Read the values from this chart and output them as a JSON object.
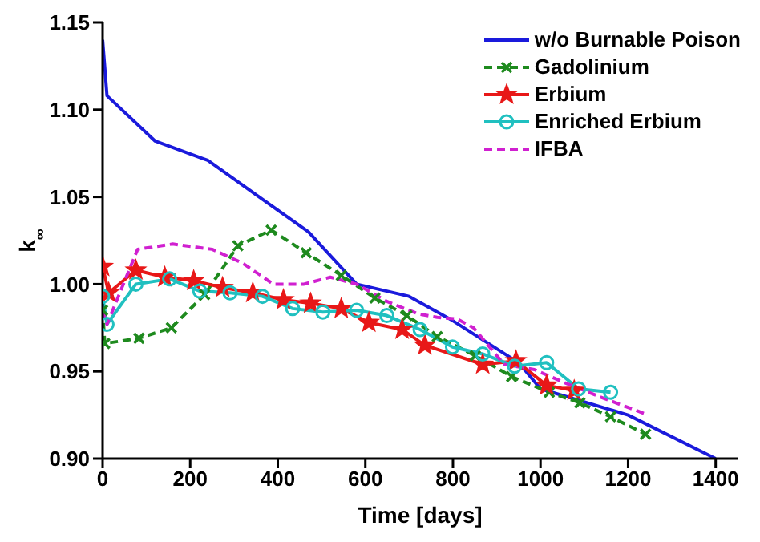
{
  "chart_data": {
    "type": "line",
    "xlabel": "Time [days]",
    "ylabel": "k$_{∞}$",
    "xlim": [
      0,
      1450
    ],
    "xticks": [
      0,
      200,
      400,
      600,
      800,
      1000,
      1200,
      1400
    ],
    "ylim": [
      0.9,
      1.15
    ],
    "yticks": [
      {
        "value": 0.9,
        "label": "0.90"
      },
      0.95,
      {
        "value": 1.0,
        "label": "1.00"
      },
      1.05,
      {
        "value": 1.1,
        "label": "1.10"
      },
      1.15
    ],
    "legend": "top right",
    "series": [
      {
        "name": "w/o Burnable Poison",
        "color": "#1a1adc",
        "marker": "none",
        "line_style": "solid",
        "x": [
          0,
          10,
          120,
          240,
          380,
          470,
          580,
          700,
          800,
          950,
          1000,
          1200,
          1400
        ],
        "values": [
          1.14,
          1.108,
          1.082,
          1.071,
          1.046,
          1.03,
          1.0,
          0.993,
          0.979,
          0.955,
          0.94,
          0.925,
          0.9
        ]
      },
      {
        "name": "Gadolinium",
        "color": "#1e8a1e",
        "marker": "cross",
        "line_style": "dashed",
        "x": [
          0,
          5,
          83,
          157,
          233,
          309,
          385,
          465,
          545,
          622,
          695,
          764,
          851,
          934,
          1020,
          1090,
          1160,
          1240
        ],
        "values": [
          0.985,
          0.966,
          0.969,
          0.975,
          0.994,
          1.022,
          1.031,
          1.018,
          1.005,
          0.992,
          0.982,
          0.97,
          0.959,
          0.947,
          0.938,
          0.932,
          0.924,
          0.914
        ]
      },
      {
        "name": "Erbium",
        "color": "#e81818",
        "marker": "star",
        "line_style": "solid",
        "x": [
          0,
          14,
          76,
          142,
          208,
          274,
          343,
          413,
          475,
          545,
          608,
          684,
          736,
          868,
          944,
          1014,
          1077
        ],
        "values": [
          1.01,
          0.995,
          1.008,
          1.004,
          1.002,
          0.998,
          0.995,
          0.991,
          0.989,
          0.986,
          0.978,
          0.974,
          0.965,
          0.954,
          0.956,
          0.942,
          0.939
        ]
      },
      {
        "name": "Enriched Erbium",
        "color": "#20c0c0",
        "marker": "circle",
        "line_style": "solid",
        "x": [
          0,
          10,
          76,
          153,
          222,
          291,
          365,
          434,
          503,
          580,
          649,
          725,
          799,
          868,
          941,
          1014,
          1087,
          1160
        ],
        "values": [
          0.993,
          0.977,
          1.0,
          1.003,
          0.996,
          0.995,
          0.993,
          0.986,
          0.984,
          0.985,
          0.982,
          0.974,
          0.964,
          0.96,
          0.953,
          0.955,
          0.94,
          0.938
        ]
      },
      {
        "name": "IFBA",
        "color": "#d020d0",
        "marker": "none",
        "line_style": "dashed",
        "x": [
          0,
          10,
          80,
          160,
          250,
          320,
          390,
          460,
          520,
          580,
          650,
          720,
          764,
          810,
          847,
          917,
          986,
          1060,
          1140,
          1246
        ],
        "values": [
          0.985,
          0.977,
          1.02,
          1.023,
          1.02,
          1.012,
          1.0,
          1.0,
          1.004,
          1.0,
          0.99,
          0.983,
          0.981,
          0.98,
          0.975,
          0.954,
          0.951,
          0.943,
          0.935,
          0.925
        ]
      }
    ]
  }
}
